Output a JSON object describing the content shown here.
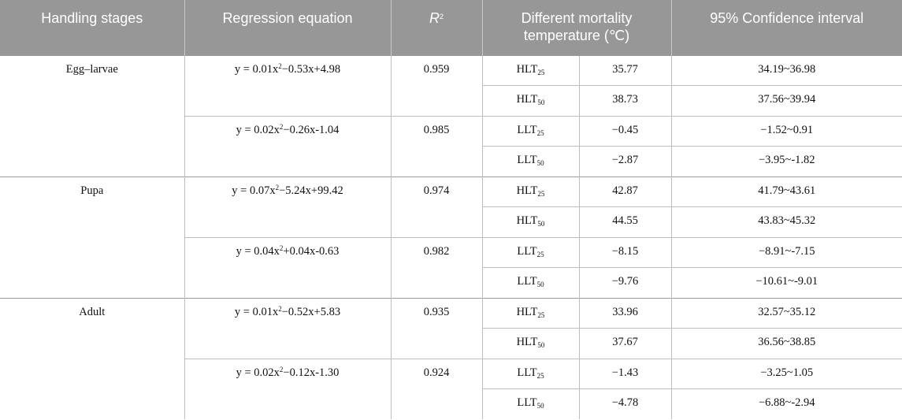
{
  "header": {
    "col1": "Handling stages",
    "col2": "Regression equation",
    "col3_base": "R",
    "col3_sup": "2",
    "col4": "Different mortality temperature (℃)",
    "col5": "95% Confidence interval"
  },
  "rows": [
    {
      "stage": "Egg–larvae",
      "equations": [
        {
          "eq_a": "y = 0.01x",
          "eq_sup": "2",
          "eq_b": "−0.53x+4.98",
          "r2": "0.959",
          "items": [
            {
              "lt": "HLT",
              "sub": "25",
              "temp": "35.77",
              "ci": "34.19~36.98"
            },
            {
              "lt": "HLT",
              "sub": "50",
              "temp": "38.73",
              "ci": "37.56~39.94"
            }
          ]
        },
        {
          "eq_a": "y = 0.02x",
          "eq_sup": "2",
          "eq_b": "−0.26x-1.04",
          "r2": "0.985",
          "items": [
            {
              "lt": "LLT",
              "sub": "25",
              "temp": "−0.45",
              "ci": "−1.52~0.91"
            },
            {
              "lt": "LLT",
              "sub": "50",
              "temp": "−2.87",
              "ci": "−3.95~-1.82"
            }
          ]
        }
      ]
    },
    {
      "stage": "Pupa",
      "equations": [
        {
          "eq_a": "y = 0.07x",
          "eq_sup": "2",
          "eq_b": "−5.24x+99.42",
          "r2": "0.974",
          "items": [
            {
              "lt": "HLT",
              "sub": "25",
              "temp": "42.87",
              "ci": "41.79~43.61"
            },
            {
              "lt": "HLT",
              "sub": "50",
              "temp": "44.55",
              "ci": "43.83~45.32"
            }
          ]
        },
        {
          "eq_a": "y = 0.04x",
          "eq_sup": "2",
          "eq_b": "+0.04x-0.63",
          "r2": "0.982",
          "items": [
            {
              "lt": "LLT",
              "sub": "25",
              "temp": "−8.15",
              "ci": "−8.91~-7.15"
            },
            {
              "lt": "LLT",
              "sub": "50",
              "temp": "−9.76",
              "ci": "−10.61~-9.01"
            }
          ]
        }
      ]
    },
    {
      "stage": "Adult",
      "equations": [
        {
          "eq_a": "y = 0.01x",
          "eq_sup": "2",
          "eq_b": "−0.52x+5.83",
          "r2": "0.935",
          "items": [
            {
              "lt": "HLT",
              "sub": "25",
              "temp": "33.96",
              "ci": "32.57~35.12"
            },
            {
              "lt": "HLT",
              "sub": "50",
              "temp": "37.67",
              "ci": "36.56~38.85"
            }
          ]
        },
        {
          "eq_a": "y = 0.02x",
          "eq_sup": "2",
          "eq_b": "−0.12x-1.30",
          "r2": "0.924",
          "items": [
            {
              "lt": "LLT",
              "sub": "25",
              "temp": "−1.43",
              "ci": "−3.25~1.05"
            },
            {
              "lt": "LLT",
              "sub": "50",
              "temp": "−4.78",
              "ci": "−6.88~-2.94"
            }
          ]
        }
      ]
    }
  ]
}
